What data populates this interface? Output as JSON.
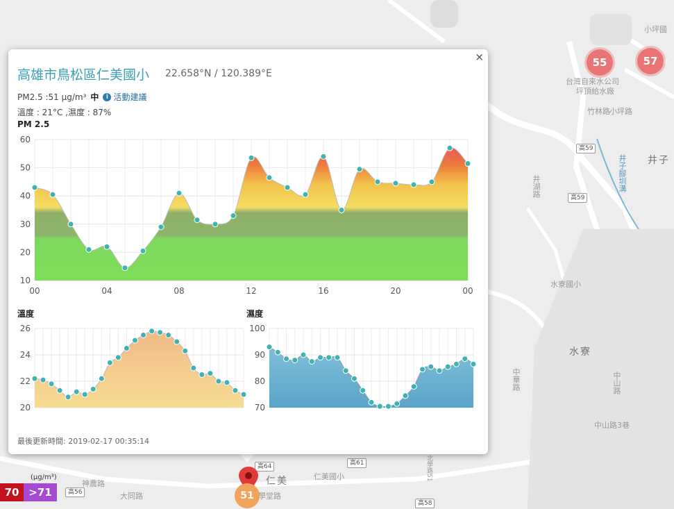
{
  "map": {
    "labels": {
      "xiaopingguo": "小坪國",
      "water_company": "台灣自來水公司",
      "water_plant": "坪頂給水廠",
      "jingzi": "井子",
      "jingzi_canal": "井子腳圳溝",
      "shuiliao_school": "水寮國小",
      "shuiliao": "水寮",
      "renmei": "仁美",
      "renmei_school": "仁美國小",
      "datong": "大同路",
      "shentang": "神農路",
      "xuetang": "學堂路",
      "zhongshan": "中山路",
      "zhongshan3": "中山路3巷",
      "zhonghua": "中華路",
      "jinghu": "井湖路",
      "zhuxi": "竹林路",
      "xiaping": "小坪路",
      "beixue": "北學路51"
    },
    "road_badges": [
      "高59",
      "高59",
      "高56",
      "高61",
      "高58",
      "高64"
    ],
    "clusters": [
      "55",
      "57"
    ],
    "marker_value": "51"
  },
  "popup": {
    "close": "×",
    "station_name": "高雄市鳥松區仁美國小",
    "coords": "22.658°N / 120.389°E",
    "pm_text": "PM2.5 :51 μg/m³",
    "pm_level": "中",
    "info_icon": "i",
    "advice_link": "活動建議",
    "weather_line": "溫度 : 21°C ,濕度 : 87%",
    "pm_chart_title": "PM 2.5",
    "temp_chart_title": "溫度",
    "humidity_chart_title": "濕度",
    "updated": "最後更新時間: 2019-02-17 00:35:14"
  },
  "legend": {
    "unit": "(μg/m³)",
    "level_70": "70",
    "level_71": ">71",
    "color_70": "#c4121f",
    "color_71": "#a74ad3"
  },
  "chart_data": [
    {
      "type": "area",
      "title": "PM 2.5",
      "x_tick_labels": [
        "00",
        "04",
        "08",
        "12",
        "16",
        "20",
        "00"
      ],
      "ylim": [
        10,
        60
      ],
      "y_ticks": [
        10,
        20,
        30,
        40,
        50,
        60
      ],
      "values": [
        43,
        40.5,
        30,
        21,
        22,
        14.5,
        20.5,
        29,
        41,
        31.5,
        30,
        33,
        53.5,
        46.5,
        43,
        40.5,
        54,
        35,
        49.5,
        45,
        44.5,
        44,
        45,
        57,
        51.5
      ]
    },
    {
      "type": "area",
      "title": "溫度",
      "ylim": [
        20,
        26
      ],
      "y_ticks": [
        20,
        22,
        24,
        26
      ],
      "values": [
        22.2,
        22.1,
        21.8,
        21.3,
        20.8,
        21.2,
        21,
        21.4,
        22.2,
        23.4,
        23.8,
        24.5,
        25.1,
        25.5,
        25.8,
        25.7,
        25.5,
        25,
        24.3,
        23,
        22.5,
        22.6,
        22,
        21.9,
        21.3,
        21
      ]
    },
    {
      "type": "area",
      "title": "濕度",
      "ylim": [
        70,
        100
      ],
      "y_ticks": [
        70,
        80,
        90,
        100
      ],
      "values": [
        93,
        91,
        88.5,
        88,
        90,
        87.5,
        89,
        89,
        89,
        84,
        81,
        76.5,
        72,
        70.5,
        70.5,
        71.5,
        74.5,
        78,
        84.5,
        85.5,
        84,
        85.5,
        86.5,
        88.5,
        86.5
      ]
    }
  ]
}
